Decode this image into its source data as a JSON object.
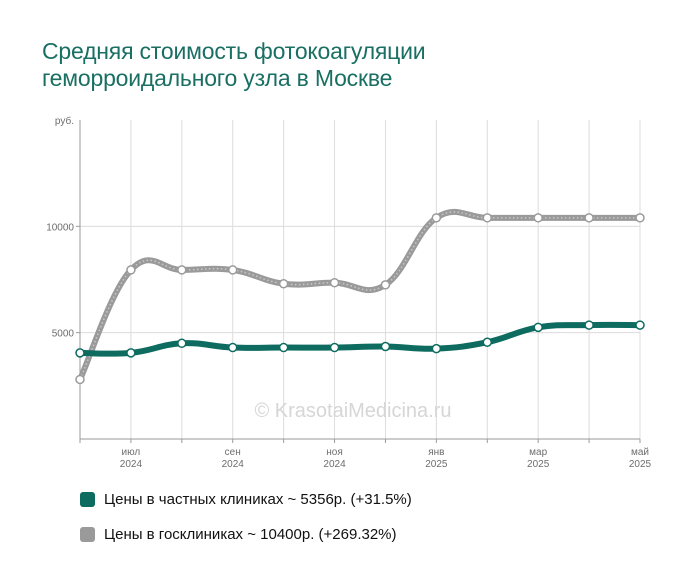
{
  "title_line1": "Средняя стоимость фотокоагуляции",
  "title_line2": "геморроидального узла в Москве",
  "watermark": "© KrasotaiMedicina.ru",
  "colors": {
    "title": "#1a6f63",
    "private": "#0e6b60",
    "public": "#9a9a9a"
  },
  "legend": [
    {
      "text": "Цены в частных клиниках ~ 5356р. (+31.5%)",
      "color": "#0e6b60"
    },
    {
      "text": "Цены в госклиниках ~ 10400р. (+269.32%)",
      "color": "#9a9a9a"
    }
  ],
  "chart_data": {
    "type": "line",
    "ylabel": "руб.",
    "yticks": [
      5000,
      10000
    ],
    "ylim": [
      0,
      15000
    ],
    "x": [
      "2024-06",
      "2024-07",
      "2024-08",
      "2024-09",
      "2024-10",
      "2024-11",
      "2024-12",
      "2025-01",
      "2025-02",
      "2025-03",
      "2025-04",
      "2025-05"
    ],
    "xtick_labels": [
      {
        "month": "июл",
        "year": "2024",
        "index": 1
      },
      {
        "month": "сен",
        "year": "2024",
        "index": 3
      },
      {
        "month": "ноя",
        "year": "2024",
        "index": 5
      },
      {
        "month": "янв",
        "year": "2025",
        "index": 7
      },
      {
        "month": "мар",
        "year": "2025",
        "index": 9
      },
      {
        "month": "май",
        "year": "2025",
        "index": 11
      }
    ],
    "grid": true,
    "series": [
      {
        "name": "Цены в частных клиниках",
        "color": "#0e6b60",
        "values": [
          4050,
          4050,
          4500,
          4300,
          4300,
          4300,
          4350,
          4250,
          4550,
          5250,
          5356,
          5356
        ]
      },
      {
        "name": "Цены в госклиниках",
        "color": "#9a9a9a",
        "values": [
          2800,
          7950,
          7950,
          7950,
          7300,
          7350,
          7250,
          10400,
          10400,
          10400,
          10400,
          10400
        ]
      }
    ]
  }
}
